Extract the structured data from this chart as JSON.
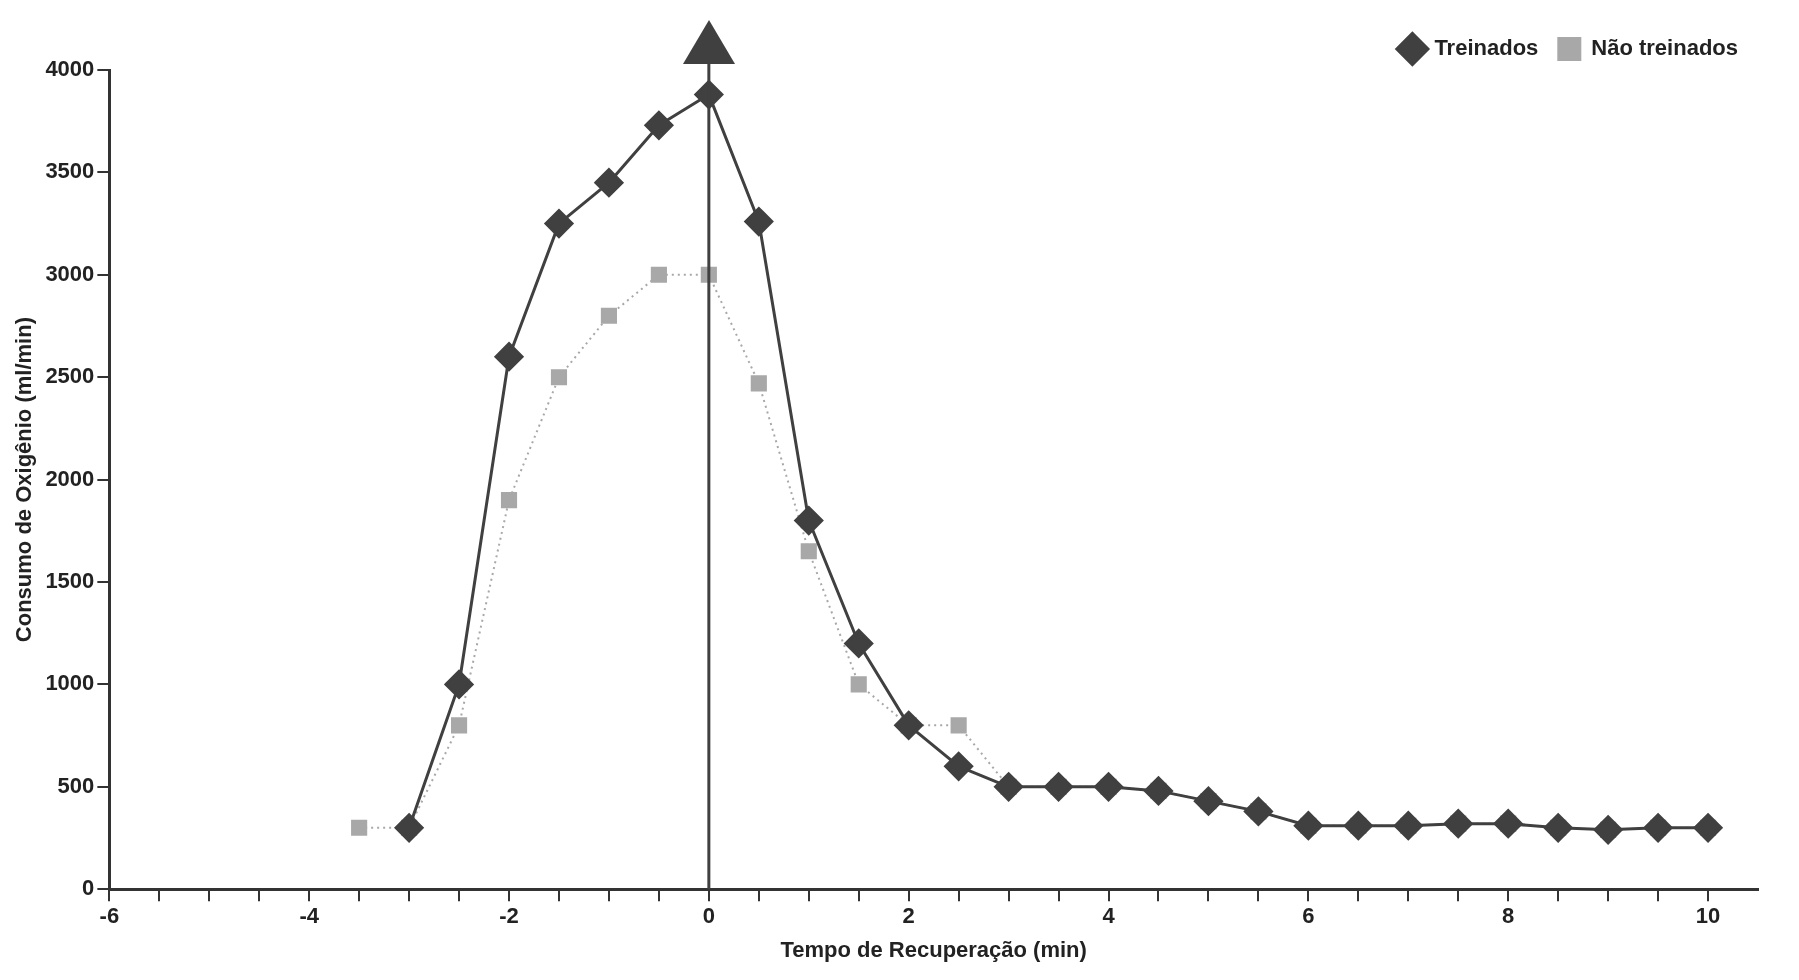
{
  "chart_data": {
    "type": "line",
    "xlabel": "Tempo de Recuperação (min)",
    "ylabel": "Consumo de Oxigênio (ml/min)",
    "xlim": [
      -6,
      10.5
    ],
    "xticks": [
      -6,
      {
        "value": -5.5,
        "label": null
      },
      {
        "value": -5,
        "label": null
      },
      {
        "value": -4.5,
        "label": null
      },
      -4,
      {
        "value": -3.5,
        "label": null
      },
      {
        "value": -3,
        "label": null
      },
      {
        "value": -2.5,
        "label": null
      },
      -2,
      {
        "value": -1.5,
        "label": null
      },
      {
        "value": -1,
        "label": null
      },
      {
        "value": -0.5,
        "label": null
      },
      0,
      {
        "value": 0.5,
        "label": null
      },
      {
        "value": 1,
        "label": null
      },
      {
        "value": 1.5,
        "label": null
      },
      2,
      {
        "value": 2.5,
        "label": null
      },
      {
        "value": 3,
        "label": null
      },
      {
        "value": 3.5,
        "label": null
      },
      4,
      {
        "value": 4.5,
        "label": null
      },
      {
        "value": 5,
        "label": null
      },
      {
        "value": 5.5,
        "label": null
      },
      6,
      {
        "value": 6.5,
        "label": null
      },
      {
        "value": 7,
        "label": null
      },
      {
        "value": 7.5,
        "label": null
      },
      8,
      {
        "value": 8.5,
        "label": null
      },
      {
        "value": 9,
        "label": null
      },
      {
        "value": 9.5,
        "label": null
      },
      10
    ],
    "ylim": [
      0,
      4000
    ],
    "yticks": [
      0,
      500,
      1000,
      1500,
      2000,
      2500,
      3000,
      3500,
      4000
    ],
    "grid": false,
    "legend": "top right",
    "ref_lines": [
      {
        "axis": "x",
        "value": 0,
        "color": "#404040"
      }
    ],
    "series": [
      {
        "name": "Treinados",
        "color": "#404040",
        "marker": "diamond",
        "line_style": "solid",
        "x": [
          -3,
          -2.5,
          -2,
          -1.5,
          -1,
          -0.5,
          0,
          0.5,
          1,
          1.5,
          2,
          2.5,
          3,
          3.5,
          4,
          4.5,
          5,
          5.5,
          6,
          6.5,
          7,
          7.5,
          8,
          8.5,
          9,
          9.5,
          10
        ],
        "values": [
          300,
          1000,
          2600,
          3250,
          3450,
          3730,
          3880,
          3260,
          1800,
          1200,
          800,
          600,
          500,
          500,
          500,
          480,
          430,
          380,
          310,
          310,
          310,
          320,
          320,
          300,
          290,
          300,
          300
        ]
      },
      {
        "name": "Não treinados",
        "color": "#a8a8a8",
        "marker": "square",
        "line_style": "dotted",
        "x": [
          -3.5,
          -3,
          -2.5,
          -2,
          -1.5,
          -1,
          -0.5,
          0,
          0.5,
          1,
          1.5,
          2,
          2.5,
          3,
          3.5,
          4,
          4.5,
          5,
          5.5,
          6,
          6.5,
          7,
          7.5,
          8,
          8.5,
          9,
          9.5,
          10
        ],
        "values": [
          300,
          300,
          800,
          1900,
          2500,
          2800,
          3000,
          3000,
          2470,
          1650,
          1000,
          800,
          800,
          500,
          500,
          500,
          480,
          430,
          380,
          310,
          310,
          310,
          320,
          320,
          300,
          290,
          300,
          300
        ]
      }
    ]
  }
}
